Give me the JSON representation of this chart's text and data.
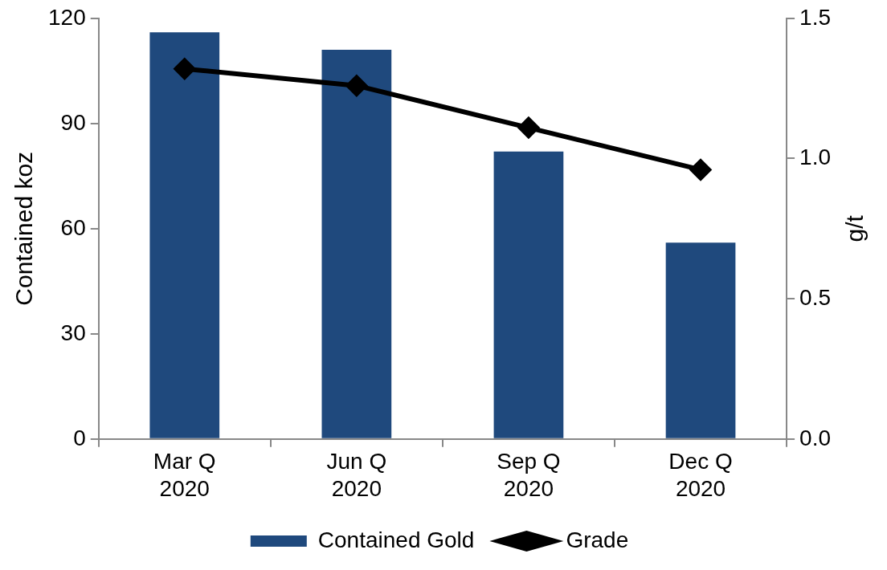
{
  "chart_data": {
    "type": "bar",
    "categories": [
      "Mar Q 2020",
      "Jun Q 2020",
      "Sep Q 2020",
      "Dec Q 2020"
    ],
    "series": [
      {
        "name": "Contained Gold",
        "color": "#1f497d",
        "values": [
          116,
          111,
          82,
          56
        ]
      },
      {
        "name": "Grade",
        "type": "line",
        "axis": "y2",
        "color": "#000000",
        "values": [
          1.32,
          1.26,
          1.11,
          0.96
        ]
      }
    ],
    "ylabel": "Contained koz",
    "y2label": "g/t",
    "ylim": [
      0,
      120
    ],
    "yticks": [
      0,
      30,
      60,
      90,
      120
    ],
    "y2lim": [
      0,
      1.5
    ],
    "y2ticks": [
      {
        "value": 0,
        "label": "0.0"
      },
      {
        "value": 0.5,
        "label": "0.5"
      },
      {
        "value": 1,
        "label": "1.0"
      },
      {
        "value": 1.5,
        "label": "1.5"
      }
    ],
    "grid": false,
    "legend": "bottom",
    "marker": "diamond",
    "line_style": "solid"
  }
}
